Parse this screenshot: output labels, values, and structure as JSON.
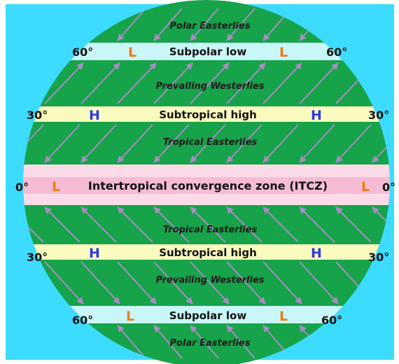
{
  "colors": {
    "background": "#3ddcff",
    "globe": "#16a34a",
    "subpolar_band": "#c9f7f7",
    "subtropical_band": "#fbfbbf",
    "itcz_band": "#fcdbe8",
    "itcz_core": "#f6bcd6",
    "arrow": "#a98cc4",
    "low_marker": "#f07a10",
    "high_marker": "#2a3cd8"
  },
  "wind_belts": {
    "polar_north": "Polar Easterlies",
    "westerlies_north": "Prevailing Westerlies",
    "tropical_north": "Tropical Easterlies",
    "tropical_south": "Tropical Easterlies",
    "westerlies_south": "Prevailing Westerlies",
    "polar_south": "Polar Easterlies"
  },
  "pressure_zones": {
    "subpolar_north": "Subpolar low",
    "subtropical_north": "Subtropical high",
    "itcz": "Intertropical convergence zone (ITCZ)",
    "subtropical_south": "Subtropical high",
    "subpolar_south": "Subpolar low"
  },
  "markers": {
    "low": "L",
    "high": "H"
  },
  "latitudes": {
    "lat60": "60°",
    "lat30": "30°",
    "lat0": "0°"
  }
}
